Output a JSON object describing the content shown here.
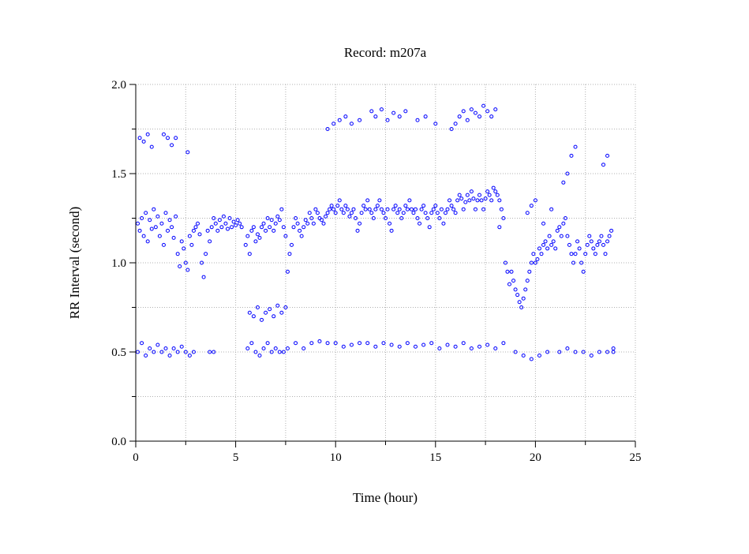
{
  "chart_data": {
    "type": "scatter",
    "title": "Record:  m207a",
    "xlabel": "Time (hour)",
    "ylabel": "RR Interval (second)",
    "xlim": [
      0,
      25
    ],
    "ylim": [
      0,
      2.0
    ],
    "x_ticks": [
      "0",
      "5",
      "10",
      "15",
      "20",
      "25"
    ],
    "y_ticks": [
      "0.0",
      "0.5",
      "1.0",
      "1.5",
      "2.0"
    ],
    "grid": "dotted",
    "legend": "none",
    "marker": "open-circle",
    "series": [
      {
        "color": "#0000ff",
        "x": [
          0.1,
          0.2,
          0.3,
          0.4,
          0.5,
          0.6,
          0.7,
          0.8,
          0.9,
          1.0,
          1.1,
          1.2,
          1.3,
          1.4,
          1.5,
          1.6,
          1.7,
          1.8,
          1.9,
          2.0,
          2.1,
          2.2,
          2.3,
          2.4,
          2.5,
          2.6,
          2.7,
          2.8,
          2.9,
          3.0,
          3.1,
          3.2,
          3.3,
          3.4,
          3.5,
          3.6,
          3.7,
          3.8,
          3.9,
          4.0,
          4.1,
          4.2,
          4.3,
          4.4,
          4.5,
          4.6,
          4.7,
          4.8,
          4.9,
          5.0,
          5.1,
          5.2,
          5.3,
          5.5,
          5.6,
          5.7,
          5.8,
          5.9,
          6.0,
          6.1,
          6.2,
          6.3,
          6.4,
          6.5,
          6.6,
          6.7,
          6.8,
          6.9,
          7.0,
          7.1,
          7.2,
          7.3,
          7.4,
          7.5,
          7.6,
          7.7,
          7.8,
          7.9,
          8.0,
          8.1,
          8.2,
          8.3,
          8.4,
          8.5,
          8.6,
          8.7,
          8.8,
          8.9,
          9.0,
          9.1,
          9.2,
          9.3,
          9.4,
          9.5,
          9.6,
          9.7,
          9.8,
          9.9,
          10.0,
          10.1,
          10.2,
          10.3,
          10.4,
          10.5,
          10.6,
          10.7,
          10.8,
          10.9,
          11.0,
          11.1,
          11.2,
          11.3,
          11.4,
          11.5,
          11.6,
          11.7,
          11.8,
          11.9,
          12.0,
          12.1,
          12.2,
          12.3,
          12.4,
          12.5,
          12.6,
          12.7,
          12.8,
          12.9,
          13.0,
          13.1,
          13.2,
          13.3,
          13.4,
          13.5,
          13.6,
          13.7,
          13.8,
          13.9,
          14.0,
          14.1,
          14.2,
          14.3,
          14.4,
          14.5,
          14.6,
          14.7,
          14.8,
          14.9,
          15.0,
          15.1,
          15.2,
          15.3,
          15.4,
          15.5,
          15.6,
          15.7,
          15.8,
          15.9,
          16.0,
          16.1,
          16.2,
          16.3,
          16.4,
          16.5,
          16.6,
          16.7,
          16.8,
          16.9,
          17.0,
          17.1,
          17.2,
          17.3,
          17.4,
          17.5,
          17.6,
          17.7,
          17.8,
          17.9,
          18.0,
          18.1,
          18.2,
          18.3,
          18.4,
          18.5,
          18.6,
          18.7,
          18.8,
          18.9,
          19.0,
          19.1,
          19.2,
          19.3,
          19.4,
          19.5,
          19.6,
          19.7,
          19.8,
          19.9,
          20.0,
          20.1,
          20.2,
          20.3,
          20.4,
          20.5,
          20.6,
          20.7,
          20.8,
          20.9,
          21.0,
          21.1,
          21.2,
          21.3,
          21.4,
          21.5,
          21.6,
          21.7,
          21.8,
          21.9,
          22.0,
          22.1,
          22.2,
          22.3,
          22.4,
          22.5,
          22.6,
          22.7,
          22.8,
          22.9,
          23.0,
          23.1,
          23.2,
          23.3,
          23.4,
          23.5,
          23.6,
          23.7,
          23.8,
          23.9,
          0.1,
          0.3,
          0.5,
          0.7,
          0.9,
          1.1,
          1.3,
          1.5,
          1.7,
          1.9,
          2.1,
          2.3,
          2.5,
          2.7,
          2.9,
          3.7,
          3.9,
          5.6,
          5.8,
          6.0,
          6.2,
          6.4,
          6.6,
          6.8,
          7.0,
          7.2,
          7.4,
          7.6,
          8.0,
          8.4,
          8.8,
          9.2,
          9.6,
          10.0,
          10.4,
          10.8,
          11.2,
          11.6,
          12.0,
          12.4,
          12.8,
          13.2,
          13.6,
          14.0,
          14.4,
          14.8,
          15.2,
          15.6,
          16.0,
          16.4,
          16.8,
          17.2,
          17.6,
          18.0,
          18.4,
          19.0,
          19.4,
          19.8,
          20.2,
          20.6,
          21.2,
          21.6,
          22.0,
          22.4,
          22.8,
          23.2,
          23.6,
          23.9,
          0.2,
          0.4,
          0.6,
          0.8,
          1.4,
          1.6,
          1.8,
          2.0,
          2.6,
          5.7,
          5.9,
          6.1,
          6.3,
          6.5,
          6.7,
          6.9,
          7.1,
          7.3,
          7.5,
          9.6,
          9.9,
          10.2,
          10.5,
          10.8,
          11.2,
          11.8,
          12.0,
          12.3,
          12.6,
          12.9,
          13.2,
          13.5,
          14.1,
          14.5,
          15.0,
          15.8,
          16.0,
          16.2,
          16.4,
          16.6,
          16.8,
          17.0,
          17.2,
          17.4,
          17.6,
          17.8,
          18.0,
          18.2,
          19.6,
          19.8,
          20.0,
          20.4,
          20.8,
          21.4,
          21.6,
          21.8,
          22.0,
          23.4,
          23.6
        ],
        "y": [
          1.22,
          1.18,
          1.25,
          1.15,
          1.28,
          1.12,
          1.24,
          1.19,
          1.3,
          1.2,
          1.26,
          1.15,
          1.22,
          1.1,
          1.28,
          1.18,
          1.24,
          1.2,
          1.14,
          1.26,
          1.05,
          0.98,
          1.12,
          1.08,
          1.0,
          0.96,
          1.15,
          1.1,
          1.18,
          1.2,
          1.22,
          1.16,
          1.0,
          0.92,
          1.05,
          1.18,
          1.12,
          1.2,
          1.25,
          1.22,
          1.18,
          1.24,
          1.2,
          1.26,
          1.22,
          1.19,
          1.25,
          1.2,
          1.23,
          1.21,
          1.24,
          1.22,
          1.2,
          1.1,
          1.15,
          1.05,
          1.18,
          1.2,
          1.12,
          1.16,
          1.14,
          1.2,
          1.22,
          1.18,
          1.25,
          1.2,
          1.24,
          1.18,
          1.22,
          1.26,
          1.24,
          1.3,
          1.2,
          1.15,
          0.95,
          1.05,
          1.1,
          1.2,
          1.25,
          1.22,
          1.18,
          1.15,
          1.2,
          1.24,
          1.22,
          1.28,
          1.25,
          1.22,
          1.3,
          1.28,
          1.25,
          1.24,
          1.22,
          1.26,
          1.28,
          1.3,
          1.32,
          1.3,
          1.28,
          1.32,
          1.35,
          1.3,
          1.28,
          1.32,
          1.3,
          1.26,
          1.28,
          1.3,
          1.25,
          1.18,
          1.22,
          1.28,
          1.32,
          1.3,
          1.35,
          1.3,
          1.28,
          1.25,
          1.3,
          1.32,
          1.35,
          1.3,
          1.28,
          1.25,
          1.3,
          1.22,
          1.18,
          1.3,
          1.32,
          1.28,
          1.3,
          1.25,
          1.28,
          1.32,
          1.3,
          1.35,
          1.3,
          1.28,
          1.3,
          1.25,
          1.22,
          1.3,
          1.32,
          1.28,
          1.25,
          1.2,
          1.28,
          1.3,
          1.32,
          1.28,
          1.25,
          1.3,
          1.22,
          1.28,
          1.3,
          1.35,
          1.32,
          1.3,
          1.28,
          1.35,
          1.38,
          1.36,
          1.3,
          1.34,
          1.38,
          1.35,
          1.4,
          1.36,
          1.3,
          1.35,
          1.38,
          1.35,
          1.3,
          1.36,
          1.4,
          1.38,
          1.35,
          1.42,
          1.4,
          1.38,
          1.35,
          1.3,
          1.25,
          1.0,
          0.95,
          0.88,
          0.95,
          0.9,
          0.85,
          0.82,
          0.78,
          0.75,
          0.8,
          0.85,
          0.9,
          0.95,
          1.0,
          1.05,
          1.0,
          1.02,
          1.08,
          1.05,
          1.1,
          1.12,
          1.08,
          1.15,
          1.1,
          1.12,
          1.08,
          1.18,
          1.2,
          1.15,
          1.22,
          1.25,
          1.15,
          1.1,
          1.05,
          1.0,
          1.05,
          1.12,
          1.08,
          1.0,
          0.95,
          1.05,
          1.1,
          1.15,
          1.12,
          1.08,
          1.05,
          1.1,
          1.12,
          1.15,
          1.1,
          1.05,
          1.12,
          1.15,
          1.18,
          0.52,
          0.5,
          0.55,
          0.48,
          0.52,
          0.5,
          0.54,
          0.5,
          0.52,
          0.48,
          0.52,
          0.5,
          0.53,
          0.5,
          0.48,
          0.5,
          0.5,
          0.5,
          0.52,
          0.55,
          0.5,
          0.48,
          0.52,
          0.55,
          0.5,
          0.52,
          0.5,
          0.5,
          0.52,
          0.55,
          0.52,
          0.55,
          0.56,
          0.55,
          0.55,
          0.53,
          0.54,
          0.55,
          0.55,
          0.53,
          0.55,
          0.54,
          0.53,
          0.55,
          0.53,
          0.54,
          0.55,
          0.52,
          0.54,
          0.53,
          0.55,
          0.52,
          0.53,
          0.54,
          0.52,
          0.55,
          0.5,
          0.48,
          0.46,
          0.48,
          0.5,
          0.5,
          0.52,
          0.5,
          0.5,
          0.48,
          0.5,
          0.5,
          0.5,
          1.7,
          1.68,
          1.72,
          1.65,
          1.72,
          1.7,
          1.66,
          1.7,
          1.62,
          0.72,
          0.7,
          0.75,
          0.68,
          0.72,
          0.74,
          0.7,
          0.76,
          0.72,
          0.75,
          1.75,
          1.78,
          1.8,
          1.82,
          1.78,
          1.8,
          1.85,
          1.82,
          1.86,
          1.8,
          1.84,
          1.82,
          1.85,
          1.8,
          1.82,
          1.78,
          1.75,
          1.78,
          1.82,
          1.85,
          1.8,
          1.86,
          1.84,
          1.82,
          1.88,
          1.85,
          1.82,
          1.86,
          1.2,
          1.28,
          1.32,
          1.35,
          1.22,
          1.3,
          1.45,
          1.5,
          1.6,
          1.65,
          1.55,
          1.6
        ]
      }
    ]
  }
}
